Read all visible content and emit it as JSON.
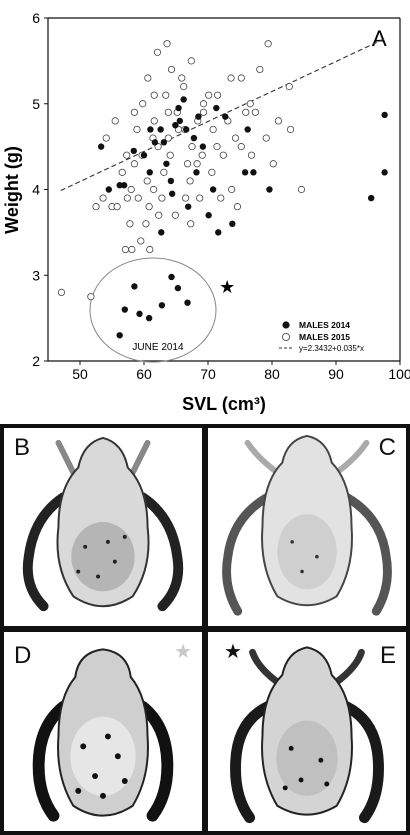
{
  "chart_data": {
    "type": "scatter",
    "panel_label": "A",
    "xlabel": "SVL (cm³)",
    "ylabel": "Weight (g)",
    "xlim": [
      45,
      100
    ],
    "ylim": [
      2,
      6
    ],
    "x_ticks": [
      "50",
      "60",
      "70",
      "80",
      "90",
      "100"
    ],
    "y_ticks": [
      "2",
      "3",
      "4",
      "5",
      "6"
    ],
    "grid": false,
    "legend_position": "bottom-right",
    "legend": {
      "males_2014": "MALES 2014",
      "males_2015": "MALES 2015",
      "fit": "y=2.3432+0.035*x"
    },
    "annotation": "JUNE 2014",
    "fit_line": {
      "intercept": 2.3432,
      "slope": 0.035,
      "x_range": [
        47,
        97.5
      ]
    },
    "series": [
      {
        "name": "MALES 2014",
        "marker": "filled-circle",
        "points": [
          [
            53.3,
            4.5
          ],
          [
            54.5,
            4.0
          ],
          [
            56.9,
            4.05
          ],
          [
            58.4,
            4.45
          ],
          [
            60.0,
            4.4
          ],
          [
            61.7,
            4.55
          ],
          [
            62.6,
            4.7
          ],
          [
            63.5,
            4.3
          ],
          [
            64.2,
            4.1
          ],
          [
            64.9,
            4.75
          ],
          [
            65.6,
            4.8
          ],
          [
            65.4,
            4.95
          ],
          [
            66.2,
            5.05
          ],
          [
            66.6,
            4.7
          ],
          [
            67.8,
            4.6
          ],
          [
            68.5,
            4.85
          ],
          [
            69.2,
            4.5
          ],
          [
            70.8,
            4.0
          ],
          [
            71.6,
            3.5
          ],
          [
            70.1,
            3.7
          ],
          [
            73.8,
            3.6
          ],
          [
            76.2,
            4.7
          ],
          [
            75.8,
            4.2
          ],
          [
            77.1,
            4.2
          ],
          [
            79.6,
            4.0
          ],
          [
            72.7,
            4.85
          ],
          [
            71.3,
            4.95
          ],
          [
            64.4,
            3.95
          ],
          [
            62.7,
            3.5
          ],
          [
            61.0,
            4.7
          ],
          [
            66.9,
            3.8
          ],
          [
            68.2,
            4.2
          ],
          [
            56.2,
            4.05
          ],
          [
            60.9,
            4.2
          ],
          [
            63.1,
            4.55
          ],
          [
            95.5,
            3.9
          ],
          [
            97.6,
            4.87
          ],
          [
            97.6,
            4.2
          ],
          [
            58.5,
            2.87
          ],
          [
            59.3,
            2.55
          ],
          [
            60.8,
            2.5
          ],
          [
            62.8,
            2.65
          ],
          [
            64.3,
            2.98
          ],
          [
            65.3,
            2.85
          ],
          [
            66.8,
            2.68
          ],
          [
            57.0,
            2.6
          ],
          [
            56.2,
            2.3
          ]
        ]
      },
      {
        "name": "MALES 2015",
        "marker": "open-circle",
        "points": [
          [
            47.1,
            2.8
          ],
          [
            51.7,
            2.75
          ],
          [
            52.5,
            3.8
          ],
          [
            53.6,
            3.9
          ],
          [
            55.0,
            3.8
          ],
          [
            55.8,
            3.8
          ],
          [
            57.1,
            3.3
          ],
          [
            57.4,
            3.9
          ],
          [
            58.0,
            4.0
          ],
          [
            58.1,
            3.3
          ],
          [
            58.5,
            4.3
          ],
          [
            59.1,
            3.9
          ],
          [
            59.5,
            3.4
          ],
          [
            59.7,
            4.4
          ],
          [
            60.3,
            3.6
          ],
          [
            60.8,
            3.8
          ],
          [
            61.4,
            4.6
          ],
          [
            61.6,
            5.1
          ],
          [
            62.2,
            4.5
          ],
          [
            62.3,
            3.7
          ],
          [
            63.1,
            4.2
          ],
          [
            63.8,
            4.9
          ],
          [
            64.3,
            5.4
          ],
          [
            64.9,
            3.7
          ],
          [
            65.4,
            4.7
          ],
          [
            66.2,
            5.2
          ],
          [
            66.5,
            3.9
          ],
          [
            66.8,
            4.3
          ],
          [
            67.2,
            4.1
          ],
          [
            67.5,
            4.5
          ],
          [
            68.4,
            4.8
          ],
          [
            69.1,
            4.4
          ],
          [
            69.3,
            4.9
          ],
          [
            70.6,
            4.2
          ],
          [
            70.8,
            4.7
          ],
          [
            71.5,
            5.1
          ],
          [
            72.4,
            4.4
          ],
          [
            73.1,
            4.8
          ],
          [
            73.6,
            5.3
          ],
          [
            74.3,
            4.6
          ],
          [
            75.2,
            4.5
          ],
          [
            75.9,
            4.9
          ],
          [
            76.8,
            4.4
          ],
          [
            77.4,
            4.9
          ],
          [
            78.1,
            5.4
          ],
          [
            79.1,
            4.6
          ],
          [
            80.2,
            4.3
          ],
          [
            81.0,
            4.8
          ],
          [
            82.9,
            4.7
          ],
          [
            82.7,
            5.2
          ],
          [
            79.4,
            5.7
          ],
          [
            62.1,
            5.6
          ],
          [
            63.6,
            5.7
          ],
          [
            59.8,
            5.0
          ],
          [
            55.5,
            4.8
          ],
          [
            54.1,
            4.6
          ],
          [
            56.6,
            4.2
          ],
          [
            58.9,
            4.7
          ],
          [
            60.6,
            5.3
          ],
          [
            63.4,
            5.1
          ],
          [
            65.9,
            5.3
          ],
          [
            67.3,
            3.6
          ],
          [
            68.7,
            3.9
          ],
          [
            60.9,
            3.3
          ],
          [
            57.8,
            3.6
          ],
          [
            72.0,
            3.9
          ],
          [
            74.6,
            3.8
          ],
          [
            84.6,
            4.0
          ],
          [
            76.6,
            5.0
          ],
          [
            73.7,
            4.0
          ],
          [
            66.4,
            4.7
          ],
          [
            61.6,
            4.8
          ],
          [
            64.1,
            4.4
          ],
          [
            58.5,
            4.9
          ],
          [
            69.3,
            5.0
          ],
          [
            65.2,
            4.9
          ],
          [
            61.5,
            4.0
          ],
          [
            62.8,
            3.9
          ],
          [
            60.5,
            4.1
          ],
          [
            57.3,
            4.4
          ],
          [
            70.1,
            5.1
          ],
          [
            63.8,
            4.6
          ],
          [
            68.3,
            4.3
          ],
          [
            75.2,
            5.3
          ],
          [
            71.4,
            4.5
          ],
          [
            67.4,
            5.5
          ]
        ]
      }
    ],
    "outlier_star": {
      "x": 73,
      "y": 2.85
    }
  },
  "photo_panels": [
    {
      "label": "B"
    },
    {
      "label": "C"
    },
    {
      "label": "D",
      "star": "★",
      "star_color": "#c8c8c8"
    },
    {
      "label": "E",
      "star": "★",
      "star_color": "#111111"
    }
  ]
}
